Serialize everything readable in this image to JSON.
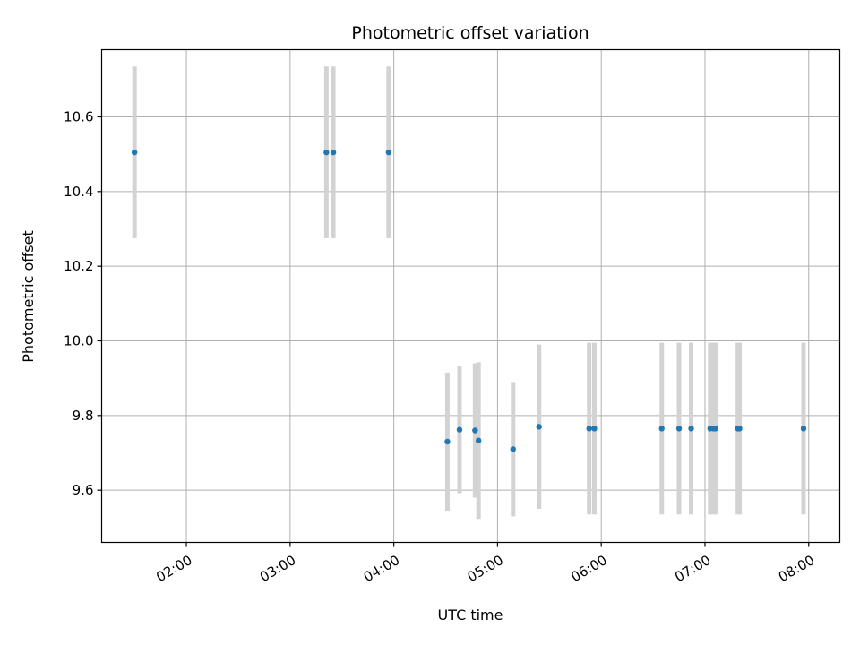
{
  "chart_data": {
    "type": "scatter",
    "title": "Photometric offset variation",
    "xlabel": "UTC time",
    "ylabel": "Photometric offset",
    "x_ticks": [
      "02:00",
      "03:00",
      "04:00",
      "05:00",
      "06:00",
      "07:00",
      "08:00"
    ],
    "y_ticks": [
      "9.6",
      "9.8",
      "10.0",
      "10.2",
      "10.4",
      "10.6"
    ],
    "xlim": [
      "01:11",
      "08:18"
    ],
    "ylim": [
      9.46,
      10.78
    ],
    "grid": true,
    "colors": {
      "point": "#1f77b4",
      "errorbar": "#d3d3d3",
      "grid": "#b0b0b0"
    },
    "points": [
      {
        "x": "01:30",
        "y": 10.505,
        "err": 0.23
      },
      {
        "x": "03:21",
        "y": 10.505,
        "err": 0.23
      },
      {
        "x": "03:25",
        "y": 10.505,
        "err": 0.23
      },
      {
        "x": "03:57",
        "y": 10.505,
        "err": 0.23
      },
      {
        "x": "04:31",
        "y": 9.73,
        "err": 0.185
      },
      {
        "x": "04:38",
        "y": 9.762,
        "err": 0.17
      },
      {
        "x": "04:47",
        "y": 9.76,
        "err": 0.18
      },
      {
        "x": "04:49",
        "y": 9.733,
        "err": 0.21
      },
      {
        "x": "05:09",
        "y": 9.71,
        "err": 0.18
      },
      {
        "x": "05:24",
        "y": 9.77,
        "err": 0.22
      },
      {
        "x": "05:53",
        "y": 9.765,
        "err": 0.23
      },
      {
        "x": "05:56",
        "y": 9.765,
        "err": 0.23
      },
      {
        "x": "06:35",
        "y": 9.765,
        "err": 0.23
      },
      {
        "x": "06:45",
        "y": 9.765,
        "err": 0.23
      },
      {
        "x": "06:52",
        "y": 9.765,
        "err": 0.23
      },
      {
        "x": "07:03",
        "y": 9.765,
        "err": 0.23
      },
      {
        "x": "07:05",
        "y": 9.765,
        "err": 0.23
      },
      {
        "x": "07:06",
        "y": 9.765,
        "err": 0.23
      },
      {
        "x": "07:19",
        "y": 9.765,
        "err": 0.23
      },
      {
        "x": "07:20",
        "y": 9.765,
        "err": 0.23
      },
      {
        "x": "07:57",
        "y": 9.765,
        "err": 0.23
      }
    ]
  }
}
